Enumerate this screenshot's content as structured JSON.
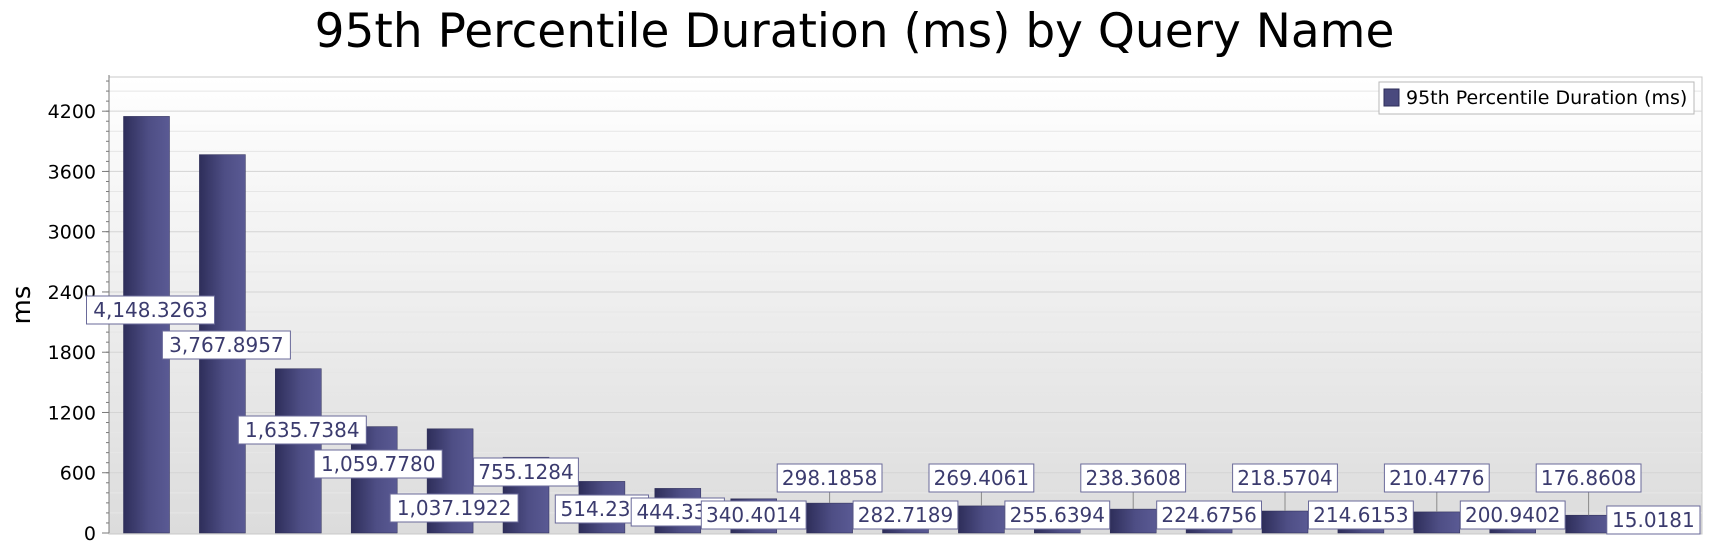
{
  "chart_data": {
    "type": "bar",
    "title": "95th Percentile Duration (ms) by Query Name",
    "xlabel": "",
    "ylabel": "ms",
    "ylim": [
      0,
      4600
    ],
    "yticks": [
      0,
      600,
      1200,
      1800,
      2400,
      3000,
      3600,
      4200
    ],
    "grid": true,
    "legend_position": "top-right",
    "series": [
      {
        "name": "95th Percentile Duration (ms)",
        "color": "#4a4a7e",
        "values": [
          4148.3263,
          3767.8957,
          1635.7384,
          1059.778,
          1037.1922,
          755.1284,
          514.231,
          444.338,
          340.4014,
          298.1858,
          282.7189,
          269.4061,
          255.6394,
          238.3608,
          224.6756,
          218.5704,
          214.6153,
          210.4776,
          200.9402,
          176.8608,
          15.0181
        ],
        "labels": [
          "4,148.3263",
          "3,767.8957",
          "1,635.7384",
          "1,059.7780",
          "1,037.1922",
          "755.1284",
          "514.231",
          "444.338",
          "340.4014",
          "298.1858",
          "282.7189",
          "269.4061",
          "255.6394",
          "238.3608",
          "224.6756",
          "218.5704",
          "214.6153",
          "210.4776",
          "200.9402",
          "176.8608",
          "15.0181"
        ]
      }
    ]
  }
}
